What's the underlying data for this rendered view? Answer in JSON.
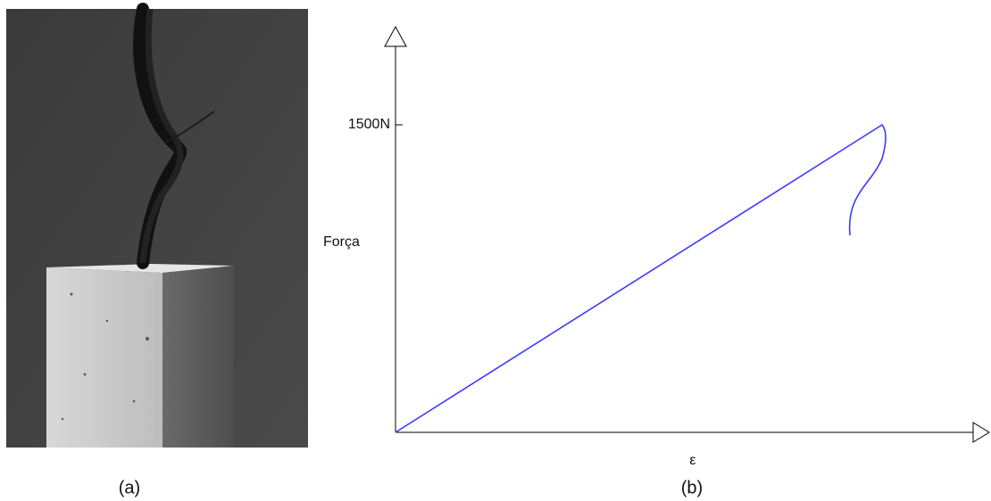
{
  "panel_a": {
    "caption": "(a)"
  },
  "panel_b": {
    "caption": "(b)",
    "chart": {
      "y_label": "Força",
      "x_label": "ε",
      "yticks": [
        {
          "value": 1500,
          "label": "1500N"
        }
      ]
    }
  }
}
